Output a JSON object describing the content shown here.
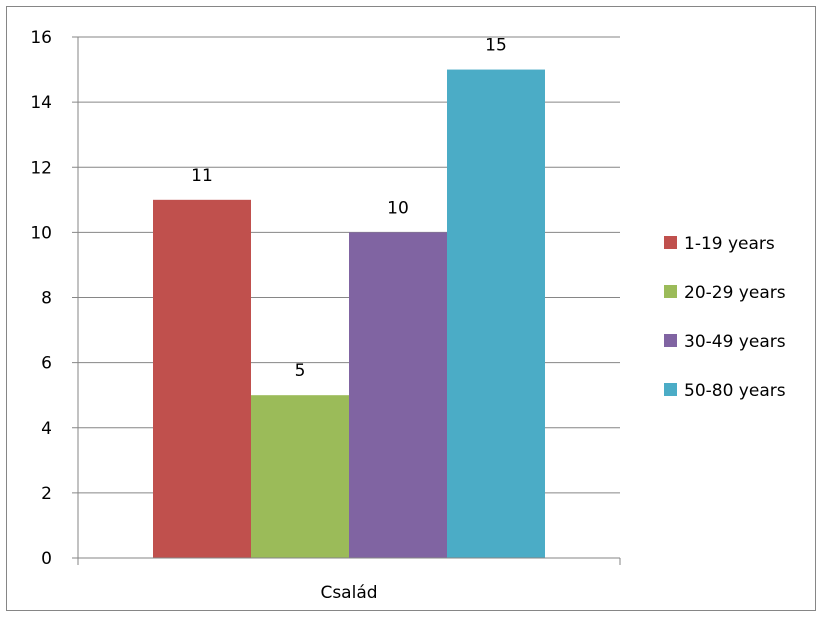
{
  "chart_data": {
    "type": "bar",
    "title": "",
    "xlabel": "",
    "ylabel": "",
    "categories": [
      "Család"
    ],
    "ylim": [
      0,
      16
    ],
    "yticks": [
      0,
      2,
      4,
      6,
      8,
      10,
      12,
      14,
      16
    ],
    "grid": true,
    "legend_position": "right",
    "series": [
      {
        "name": "1-19 years",
        "values": [
          11
        ],
        "color": "#C0504D"
      },
      {
        "name": "20-29 years",
        "values": [
          5
        ],
        "color": "#9BBB59"
      },
      {
        "name": "30-49 years",
        "values": [
          10
        ],
        "color": "#8064A2"
      },
      {
        "name": "50-80 years",
        "values": [
          15
        ],
        "color": "#4BACC6"
      }
    ]
  }
}
